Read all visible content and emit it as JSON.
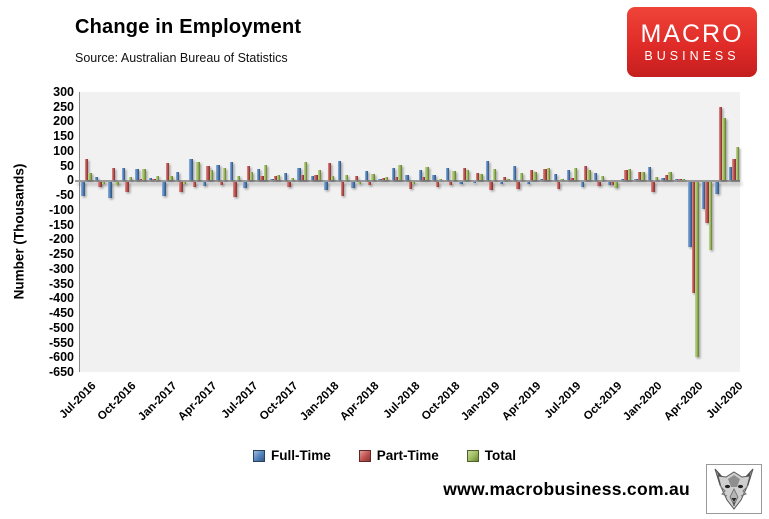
{
  "header": {
    "title": "Change in Employment",
    "source": "Source: Australian Bureau of Statistics",
    "logo": {
      "line1": "MACRO",
      "line2": "BUSINESS",
      "bg_color": "#d92a25",
      "text_color": "#ffffff"
    }
  },
  "chart_data": {
    "type": "bar",
    "title": "Change in Employment",
    "subtitle": "Source: Australian Bureau of Statistics",
    "xlabel": "",
    "ylabel": "Number (Thousands)",
    "ylim": [
      -650,
      300
    ],
    "ytick_step": 50,
    "yticks": [
      300,
      250,
      200,
      150,
      100,
      50,
      0,
      -50,
      -100,
      -150,
      -200,
      -250,
      -300,
      -350,
      -400,
      -450,
      -500,
      -550,
      -600,
      -650
    ],
    "grid": false,
    "legend_position": "bottom",
    "plot_bg_color": "#f1f1f1",
    "units": "thousands of persons, monthly change",
    "categories": [
      "Jul-2016",
      "Aug-2016",
      "Sep-2016",
      "Oct-2016",
      "Nov-2016",
      "Dec-2016",
      "Jan-2017",
      "Feb-2017",
      "Mar-2017",
      "Apr-2017",
      "May-2017",
      "Jun-2017",
      "Jul-2017",
      "Aug-2017",
      "Sep-2017",
      "Oct-2017",
      "Nov-2017",
      "Dec-2017",
      "Jan-2018",
      "Feb-2018",
      "Mar-2018",
      "Apr-2018",
      "May-2018",
      "Jun-2018",
      "Jul-2018",
      "Aug-2018",
      "Sep-2018",
      "Oct-2018",
      "Nov-2018",
      "Dec-2018",
      "Jan-2019",
      "Feb-2019",
      "Mar-2019",
      "Apr-2019",
      "May-2019",
      "Jun-2019",
      "Jul-2019",
      "Aug-2019",
      "Sep-2019",
      "Oct-2019",
      "Nov-2019",
      "Dec-2019",
      "Jan-2020",
      "Feb-2020",
      "Mar-2020",
      "Apr-2020",
      "May-2020",
      "Jun-2020",
      "Jul-2020"
    ],
    "x_tick_labels": [
      "Jul-2016",
      "Oct-2016",
      "Jan-2017",
      "Apr-2017",
      "Jul-2017",
      "Oct-2017",
      "Jan-2018",
      "Apr-2018",
      "Jul-2018",
      "Oct-2018",
      "Jan-2019",
      "Apr-2019",
      "Jul-2019",
      "Oct-2019",
      "Jan-2020",
      "Apr-2020",
      "Jul-2020"
    ],
    "x_tick_every": 3,
    "series": [
      {
        "name": "Full-Time",
        "color": "#4F81BD",
        "values": [
          -45,
          11,
          -53,
          41,
          39,
          9,
          -45,
          27,
          74,
          -12,
          52,
          62,
          -20,
          40,
          6,
          24,
          42,
          15,
          -25,
          65,
          -20,
          33,
          4,
          41,
          19,
          34,
          20,
          42,
          -6,
          -3,
          65,
          -7,
          48,
          -6,
          2,
          21,
          35,
          -16,
          26,
          -10,
          4,
          0,
          46,
          7,
          0,
          -220,
          -89,
          -38,
          44
        ]
      },
      {
        "name": "Part-Time",
        "color": "#C0504D",
        "values": [
          72,
          -15,
          43,
          -32,
          0,
          4,
          58,
          -34,
          -14,
          49,
          -10,
          -48,
          48,
          14,
          14,
          -17,
          20,
          20,
          60,
          -47,
          15,
          -10,
          8,
          10,
          -23,
          10,
          -15,
          -10,
          43,
          25,
          -26,
          12,
          -23,
          35,
          40,
          -21,
          7,
          50,
          -11,
          -9,
          36,
          29,
          -33,
          20,
          6,
          -374,
          -139,
          249,
          71
        ]
      },
      {
        "name": "Total",
        "color": "#9BBB59",
        "values": [
          26,
          -4,
          -10,
          10,
          39,
          14,
          14,
          -6,
          61,
          37,
          42,
          14,
          28,
          54,
          20,
          7,
          62,
          35,
          16,
          18,
          -5,
          23,
          12,
          51,
          -4,
          44,
          6,
          33,
          37,
          22,
          39,
          5,
          26,
          28,
          42,
          0,
          41,
          35,
          15,
          -19,
          40,
          29,
          13,
          27,
          6,
          -594,
          -228,
          211,
          115
        ]
      }
    ]
  },
  "footer": {
    "url": "www.macrobusiness.com.au",
    "logo": "wolf-head-logo"
  }
}
